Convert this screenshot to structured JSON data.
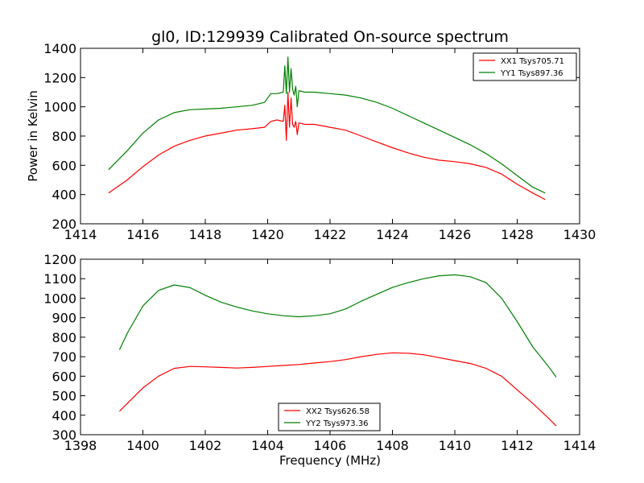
{
  "title": "gl0, ID:129939 Calibrated On-source spectrum",
  "chart_data": [
    {
      "type": "line",
      "title": "gl0, ID:129939 Calibrated On-source spectrum",
      "xlabel": "",
      "ylabel": "Power in Kelvin",
      "xlim": [
        1414,
        1430
      ],
      "ylim": [
        200,
        1400
      ],
      "xticks": [
        1414,
        1416,
        1418,
        1420,
        1422,
        1424,
        1426,
        1428,
        1430
      ],
      "yticks": [
        200,
        400,
        600,
        800,
        1000,
        1200,
        1400
      ],
      "grid": false,
      "legend_position": "top-right",
      "series": [
        {
          "name": "XX1 Tsys705.71",
          "color": "#ff0000",
          "x": [
            1414.9,
            1415.5,
            1416.0,
            1416.5,
            1417.0,
            1417.5,
            1418.0,
            1418.5,
            1419.0,
            1419.5,
            1419.9,
            1420.1,
            1420.3,
            1420.5,
            1420.55,
            1420.6,
            1420.65,
            1420.7,
            1420.75,
            1420.8,
            1420.85,
            1420.9,
            1420.95,
            1421.0,
            1421.2,
            1421.5,
            1422.0,
            1422.5,
            1423.0,
            1423.5,
            1424.0,
            1424.5,
            1425.0,
            1425.5,
            1426.0,
            1426.5,
            1427.0,
            1427.5,
            1428.0,
            1428.5,
            1428.9
          ],
          "y": [
            410,
            500,
            590,
            670,
            730,
            770,
            800,
            820,
            840,
            850,
            860,
            900,
            910,
            900,
            1010,
            770,
            1100,
            860,
            1060,
            880,
            860,
            900,
            810,
            890,
            880,
            880,
            860,
            840,
            800,
            760,
            720,
            685,
            655,
            635,
            625,
            610,
            585,
            540,
            470,
            410,
            365
          ]
        },
        {
          "name": "YY1 Tsys897.36",
          "color": "#008000",
          "x": [
            1414.9,
            1415.5,
            1416.0,
            1416.5,
            1417.0,
            1417.5,
            1418.0,
            1418.5,
            1419.0,
            1419.5,
            1419.9,
            1420.1,
            1420.3,
            1420.5,
            1420.55,
            1420.6,
            1420.65,
            1420.7,
            1420.75,
            1420.8,
            1420.85,
            1420.9,
            1420.95,
            1421.0,
            1421.2,
            1421.5,
            1422.0,
            1422.5,
            1423.0,
            1423.5,
            1424.0,
            1424.5,
            1425.0,
            1425.5,
            1426.0,
            1426.5,
            1427.0,
            1427.5,
            1428.0,
            1428.5,
            1428.9
          ],
          "y": [
            570,
            700,
            820,
            910,
            960,
            980,
            985,
            990,
            1000,
            1010,
            1030,
            1090,
            1090,
            1100,
            1280,
            1090,
            1340,
            1100,
            1260,
            1120,
            1080,
            1140,
            1000,
            1110,
            1100,
            1100,
            1090,
            1080,
            1060,
            1030,
            990,
            940,
            890,
            840,
            790,
            740,
            680,
            610,
            530,
            450,
            410
          ]
        }
      ]
    },
    {
      "type": "line",
      "title": "",
      "xlabel": "Frequency (MHz)",
      "ylabel": "",
      "xlim": [
        1398,
        1414
      ],
      "ylim": [
        300,
        1200
      ],
      "xticks": [
        1398,
        1400,
        1402,
        1404,
        1406,
        1408,
        1410,
        1412,
        1414
      ],
      "yticks": [
        300,
        400,
        500,
        600,
        700,
        800,
        900,
        1000,
        1100,
        1200
      ],
      "grid": false,
      "legend_position": "bottom-center",
      "series": [
        {
          "name": "XX2 Tsys626.58",
          "color": "#ff0000",
          "x": [
            1399.25,
            1399.5,
            1400.0,
            1400.5,
            1401.0,
            1401.5,
            1402.0,
            1402.5,
            1403.0,
            1403.5,
            1404.0,
            1404.5,
            1405.0,
            1405.5,
            1406.0,
            1406.5,
            1407.0,
            1407.5,
            1408.0,
            1408.5,
            1409.0,
            1409.5,
            1410.0,
            1410.5,
            1411.0,
            1411.5,
            1412.0,
            1412.5,
            1413.0,
            1413.25
          ],
          "y": [
            420,
            460,
            540,
            600,
            640,
            650,
            648,
            645,
            642,
            645,
            650,
            655,
            660,
            668,
            675,
            685,
            700,
            712,
            720,
            718,
            710,
            695,
            680,
            665,
            640,
            600,
            530,
            460,
            385,
            345
          ]
        },
        {
          "name": "YY2 Tsys973.36",
          "color": "#008000",
          "x": [
            1399.25,
            1399.5,
            1400.0,
            1400.5,
            1401.0,
            1401.5,
            1402.0,
            1402.5,
            1403.0,
            1403.5,
            1404.0,
            1404.5,
            1405.0,
            1405.5,
            1406.0,
            1406.5,
            1407.0,
            1407.5,
            1408.0,
            1408.5,
            1409.0,
            1409.5,
            1410.0,
            1410.5,
            1411.0,
            1411.5,
            1412.0,
            1412.5,
            1413.0,
            1413.25
          ],
          "y": [
            735,
            820,
            960,
            1040,
            1068,
            1055,
            1015,
            980,
            955,
            935,
            920,
            910,
            905,
            910,
            920,
            945,
            985,
            1020,
            1055,
            1080,
            1100,
            1115,
            1120,
            1110,
            1080,
            1000,
            880,
            750,
            650,
            595
          ]
        }
      ]
    }
  ]
}
